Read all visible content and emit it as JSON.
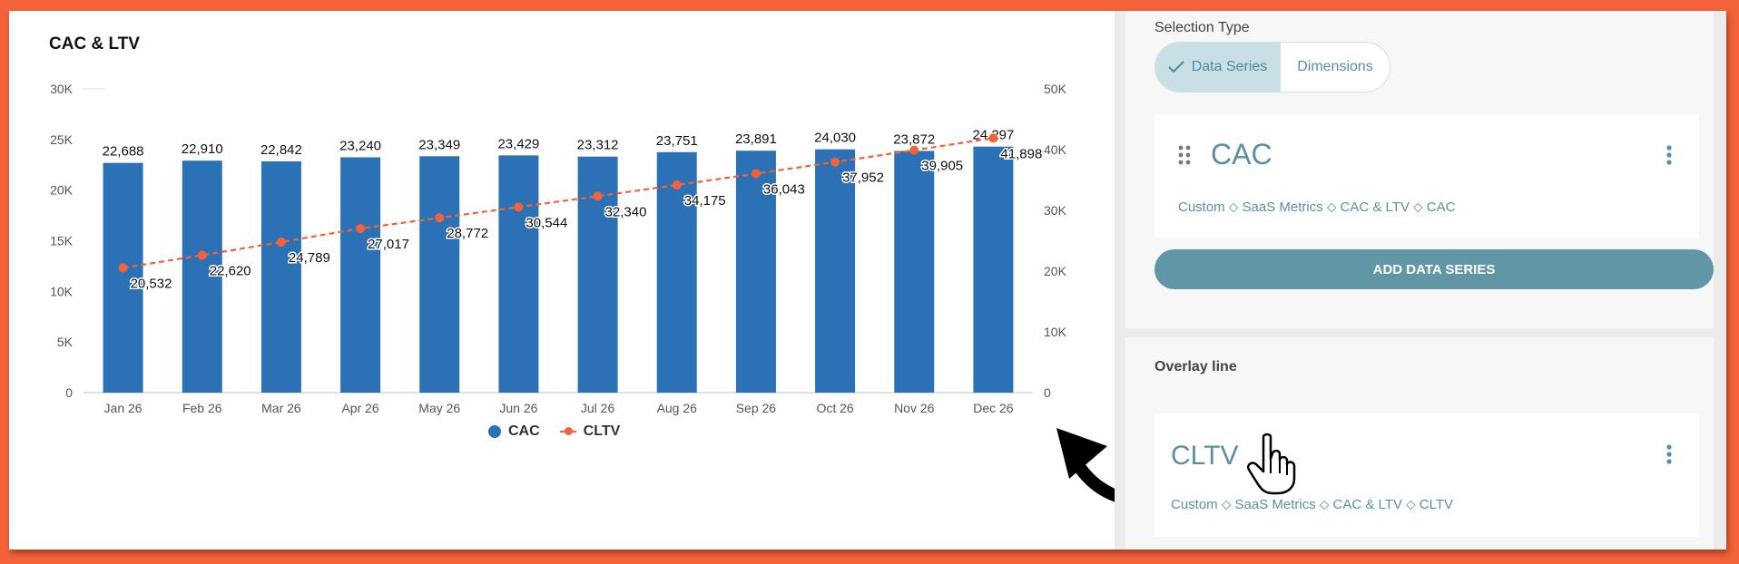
{
  "chart_data": {
    "type": "bar",
    "title": "CAC & LTV",
    "categories": [
      "Jan 26",
      "Feb 26",
      "Mar 26",
      "Apr 26",
      "May 26",
      "Jun 26",
      "Jul 26",
      "Aug 26",
      "Sep 26",
      "Oct 26",
      "Nov 26",
      "Dec 26"
    ],
    "series": [
      {
        "name": "CAC",
        "type": "bar",
        "axis": "left",
        "color": "#2a72b5",
        "values": [
          22688,
          22910,
          22842,
          23240,
          23349,
          23429,
          23312,
          23751,
          23891,
          24030,
          23872,
          24297
        ],
        "labels": [
          "22,688",
          "22,910",
          "22,842",
          "23,240",
          "23,349",
          "23,429",
          "23,312",
          "23,751",
          "23,891",
          "24,030",
          "23,872",
          "24,297"
        ]
      },
      {
        "name": "CLTV",
        "type": "line",
        "style": "dashed",
        "axis": "right",
        "color": "#f4623a",
        "values": [
          20532,
          22620,
          24789,
          27017,
          28772,
          30544,
          32340,
          34175,
          36043,
          37952,
          39905,
          41898
        ],
        "labels": [
          "20,532",
          "22,620",
          "24,789",
          "27,017",
          "28,772",
          "30,544",
          "32,340",
          "34,175",
          "36,043",
          "37,952",
          "39,905",
          "41,898"
        ]
      }
    ],
    "y_left": {
      "ylim": [
        0,
        30000
      ],
      "ticks": [
        "0",
        "5K",
        "10K",
        "15K",
        "20K",
        "25K",
        "30K"
      ]
    },
    "y_right": {
      "ylim": [
        0,
        50000
      ],
      "ticks": [
        "0",
        "10K",
        "20K",
        "30K",
        "40K",
        "50K"
      ]
    },
    "legend": {
      "placement": "bottom",
      "items": [
        "CAC",
        "CLTV"
      ]
    },
    "grid": false
  },
  "sidebar": {
    "selection_type_label": "Selection Type",
    "toggle": {
      "data_series": "Data Series",
      "dimensions": "Dimensions"
    },
    "series": {
      "name": "CAC",
      "path": "Custom ⬦ SaaS Metrics ⬦ CAC & LTV ⬦ CAC"
    },
    "add_button": "ADD DATA SERIES",
    "overlay_label": "Overlay line",
    "overlay": {
      "name": "CLTV",
      "path": "Custom ⬦ SaaS Metrics ⬦ CAC & LTV ⬦ CLTV"
    }
  },
  "icons": {
    "check": "check-icon",
    "drag": "drag-handle-icon",
    "menu": "more-vertical-icon",
    "pointer": "hand-pointer-icon",
    "arrow": "curved-arrow-icon"
  }
}
